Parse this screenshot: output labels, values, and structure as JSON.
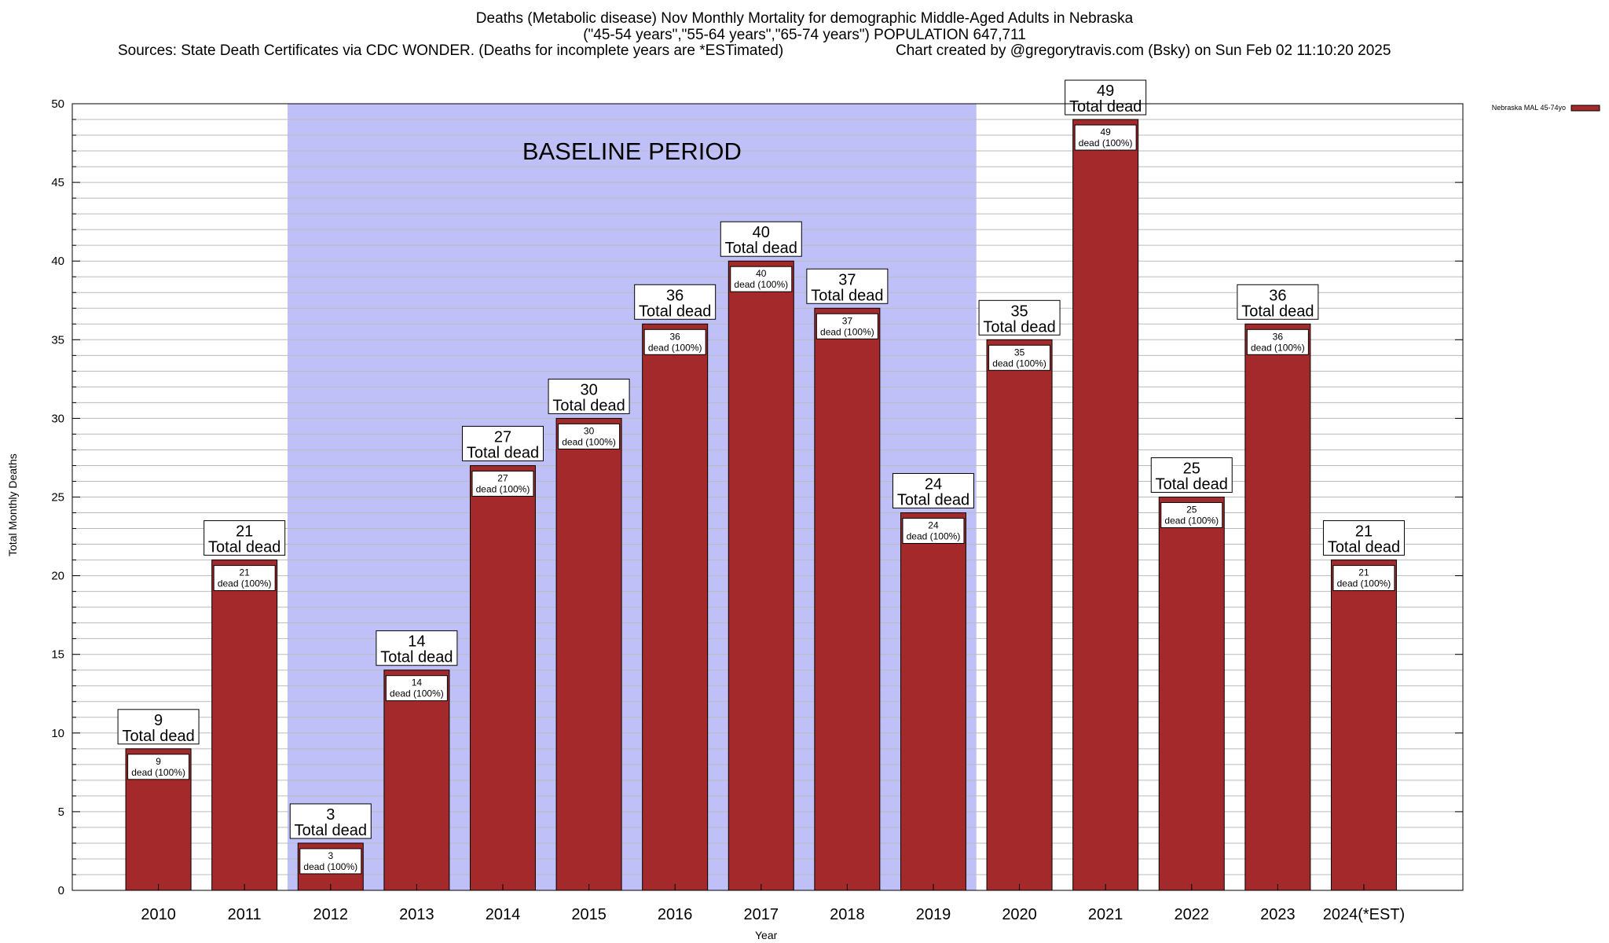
{
  "header": {
    "title": "Deaths (Metabolic disease) Nov Monthly Mortality for demographic Middle-Aged Adults in Nebraska",
    "subtitle": "(\"45-54 years\",\"55-64 years\",\"65-74 years\") POPULATION 647,711",
    "sources": "Sources: State Death Certificates via CDC WONDER. (Deaths for incomplete years are *ESTimated)",
    "credit": "Chart created by @gregorytravis.com (Bsky) on Sun Feb 02 11:10:20 2025"
  },
  "chart_data": {
    "type": "bar",
    "xlabel": "Year",
    "ylabel": "Total Monthly Deaths",
    "ylim": [
      0,
      50
    ],
    "yticks": [
      0,
      5,
      10,
      15,
      20,
      25,
      30,
      35,
      40,
      45,
      50
    ],
    "grid": true,
    "legend": {
      "position": "top-right"
    },
    "categories": [
      "2010",
      "2011",
      "2012",
      "2013",
      "2014",
      "2015",
      "2016",
      "2017",
      "2018",
      "2019",
      "2020",
      "2021",
      "2022",
      "2023",
      "2024(*EST)"
    ],
    "series": [
      {
        "name": "Nebraska MAL 45-74yo",
        "color": "#a3292b",
        "values": [
          9,
          21,
          3,
          14,
          27,
          30,
          36,
          40,
          37,
          24,
          35,
          49,
          25,
          36,
          21
        ]
      }
    ],
    "top_label_suffix": "Total dead",
    "inner_label_suffix": "dead (100%)",
    "baseline_period": {
      "label": "BASELINE PERIOD",
      "from": "2012",
      "to": "2019",
      "color": "#c0c0f8"
    }
  }
}
